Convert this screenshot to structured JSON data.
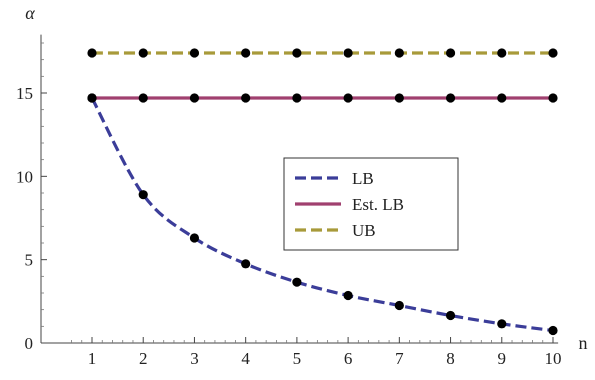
{
  "chart_data": {
    "type": "line",
    "xlabel": "n",
    "ylabel": "α",
    "x": [
      1,
      2,
      3,
      4,
      5,
      6,
      7,
      8,
      9,
      10
    ],
    "xlim": [
      0.5,
      10.1
    ],
    "ylim": [
      0,
      18.5
    ],
    "x_ticks": [
      1,
      2,
      3,
      4,
      5,
      6,
      7,
      8,
      9,
      10
    ],
    "y_ticks": [
      0,
      5,
      10,
      15
    ],
    "grid": false,
    "legend_position": "center-right",
    "series": [
      {
        "name": "LB",
        "values": [
          14.7,
          8.9,
          6.3,
          4.75,
          3.65,
          2.85,
          2.25,
          1.65,
          1.15,
          0.75
        ],
        "color": "#3b3d99",
        "dash": "dashed",
        "markers": true
      },
      {
        "name": "Est. LB",
        "values": [
          14.7,
          14.7,
          14.7,
          14.7,
          14.7,
          14.7,
          14.7,
          14.7,
          14.7,
          14.7
        ],
        "color": "#a0406f",
        "dash": "solid",
        "markers": true
      },
      {
        "name": "UB",
        "values": [
          17.4,
          17.4,
          17.4,
          17.4,
          17.4,
          17.4,
          17.4,
          17.4,
          17.4,
          17.4
        ],
        "color": "#a89a3a",
        "dash": "dashed",
        "markers": true
      }
    ],
    "marker_color": "#000000"
  }
}
